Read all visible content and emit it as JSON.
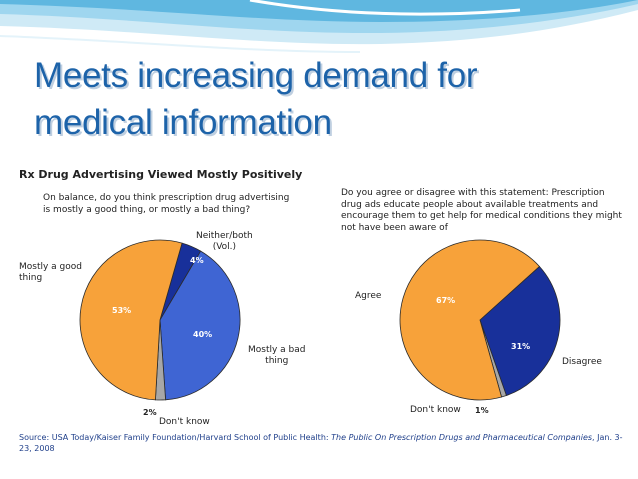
{
  "slide": {
    "title_line1": "Meets increasing demand for",
    "title_line2": "medical information"
  },
  "chart_title": "Rx Drug Advertising Viewed Mostly Positively",
  "source": {
    "prefix": "Source: USA Today/Kaiser Family Foundation/Harvard School of Public Health: ",
    "italic": "The Public On Prescription Drugs and Pharmaceutical Companies",
    "suffix": ", Jan. 3-23, 2008"
  },
  "colors": {
    "title": "#1d63a9",
    "orange": "#f7a23a",
    "blue_light": "#3f65d3",
    "blue_dark": "#18309a",
    "gray": "#a7a7a7"
  },
  "chart_data": [
    {
      "type": "pie",
      "question": "On balance, do you think prescription drug advertising is mostly a good thing, or mostly a bad thing?",
      "slices": [
        {
          "label_line1": "Mostly a good",
          "label_line2": "thing",
          "value": 53,
          "value_label": "53%",
          "color": "#f7a23a"
        },
        {
          "label_line1": "Neither/both",
          "label_line2": "(Vol.)",
          "value": 4,
          "value_label": "4%",
          "color": "#18309a"
        },
        {
          "label_line1": "Mostly a bad",
          "label_line2": "thing",
          "value": 40,
          "value_label": "40%",
          "color": "#3f65d3"
        },
        {
          "label_line1": "Don't know",
          "label_line2": "",
          "value": 2,
          "value_label": "2%",
          "color": "#a7a7a7"
        }
      ]
    },
    {
      "type": "pie",
      "question": "Do you agree or disagree with this statement: Prescription drug ads educate people about available treatments and encourage them to get help for medical conditions they might not have been aware of",
      "slices": [
        {
          "label_line1": "Agree",
          "label_line2": "",
          "value": 67,
          "value_label": "67%",
          "color": "#f7a23a"
        },
        {
          "label_line1": "Disagree",
          "label_line2": "",
          "value": 31,
          "value_label": "31%",
          "color": "#18309a"
        },
        {
          "label_line1": "Don't know",
          "label_line2": "",
          "value": 1,
          "value_label": "1%",
          "color": "#a7a7a7"
        }
      ]
    }
  ]
}
